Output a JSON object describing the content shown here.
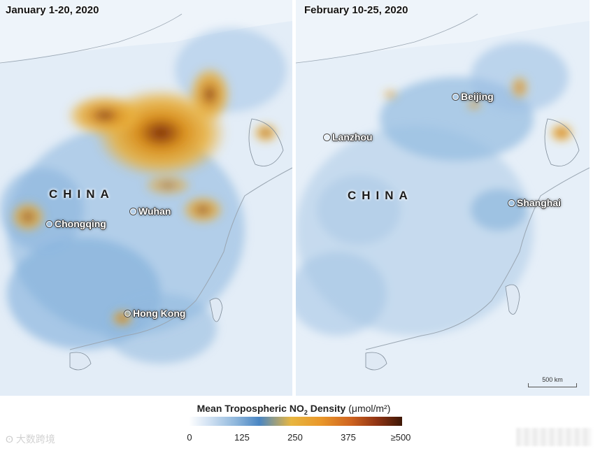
{
  "panels": {
    "left": {
      "title": "January 1-20, 2020",
      "country": "CHINA",
      "cities": {
        "chongqing": "Chongqing",
        "wuhan": "Wuhan",
        "hongkong": "Hong Kong"
      }
    },
    "right": {
      "title": "February 10-25, 2020",
      "country": "CHINA",
      "cities": {
        "beijing": "Beijing",
        "lanzhou": "Lanzhou",
        "shanghai": "Shanghai"
      },
      "scale_bar": "500 km"
    }
  },
  "legend": {
    "title_main": "Mean Tropospheric NO",
    "title_sub": "2",
    "title_rest": " Density ",
    "unit": "(μmol/m²)",
    "ticks": [
      "0",
      "125",
      "250",
      "375",
      "≥500"
    ],
    "colors": [
      "#ffffff",
      "#4a86c3",
      "#e8b640",
      "#cf6420",
      "#3e1706"
    ]
  },
  "watermark": {
    "icon": "weibo-logo-icon",
    "text": "大数跨境"
  }
}
